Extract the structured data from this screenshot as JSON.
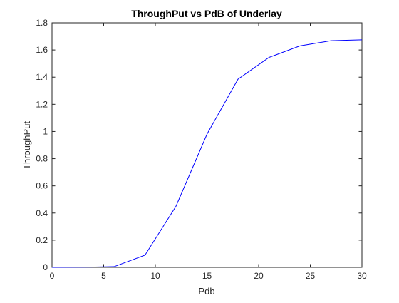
{
  "chart_data": {
    "type": "line",
    "title": "ThroughPut vs PdB of Underlay",
    "xlabel": "Pdb",
    "ylabel": "ThroughPut",
    "xlim": [
      0,
      30
    ],
    "ylim": [
      0,
      1.8
    ],
    "xticks": [
      "0",
      "5",
      "10",
      "15",
      "20",
      "25",
      "30"
    ],
    "yticks": [
      "0",
      "0.2",
      "0.4",
      "0.6",
      "0.8",
      "1",
      "1.2",
      "1.4",
      "1.6",
      "1.8"
    ],
    "grid": false,
    "series": [
      {
        "color": "#0000ff",
        "x": [
          0,
          3,
          6,
          9,
          12,
          15,
          18,
          21,
          24,
          27,
          30
        ],
        "y": [
          0.0,
          0.001,
          0.005,
          0.09,
          0.45,
          0.98,
          1.385,
          1.545,
          1.63,
          1.668,
          1.675
        ]
      }
    ]
  }
}
